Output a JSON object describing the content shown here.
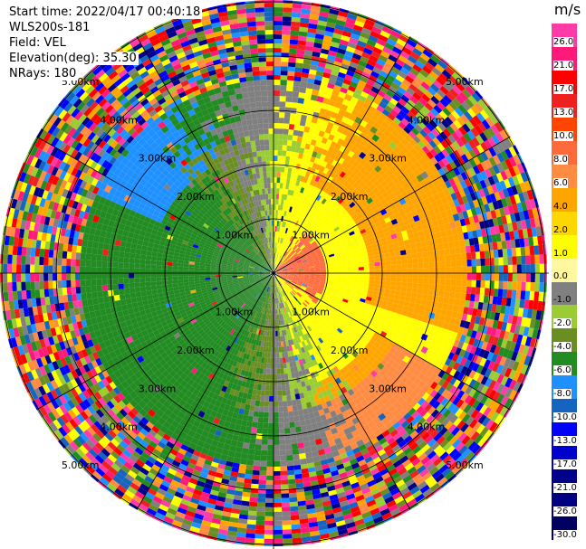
{
  "header": {
    "start_time": "Start time: 2022/04/17 00:40:18",
    "instrument": "WLS200s-181",
    "field": "Field: VEL",
    "elevation": "Elevation(deg): 35.30",
    "nrays": "NRays: 180"
  },
  "range_rings": {
    "labels": [
      "1.00km",
      "2.00km",
      "3.00km",
      "4.00km",
      "5.00km"
    ],
    "values_km": [
      1,
      2,
      3,
      4,
      5
    ]
  },
  "colorbar": {
    "unit": "m/s",
    "ticks": [
      "26.0",
      "21.0",
      "17.0",
      "13.0",
      "10.0",
      "8.0",
      "6.0",
      "4.0",
      "2.0",
      "1.0",
      "0.0",
      "-1.0",
      "-2.0",
      "-4.0",
      "-6.0",
      "-8.0",
      "-10.0",
      "-13.0",
      "-17.0",
      "-21.0",
      "-26.0",
      "-30.0"
    ],
    "colors": [
      "#ff3ba8",
      "#ff1a7a",
      "#ff0000",
      "#ee2020",
      "#ff4500",
      "#ff6a3d",
      "#ff8c42",
      "#ffa500",
      "#ffd700",
      "#ffff00",
      "#fff8a0",
      "#808080",
      "#9acd32",
      "#6b8e23",
      "#228b22",
      "#1e90ff",
      "#1565c0",
      "#0000ff",
      "#0000cd",
      "#00008b",
      "#000080",
      "#000060"
    ]
  }
}
